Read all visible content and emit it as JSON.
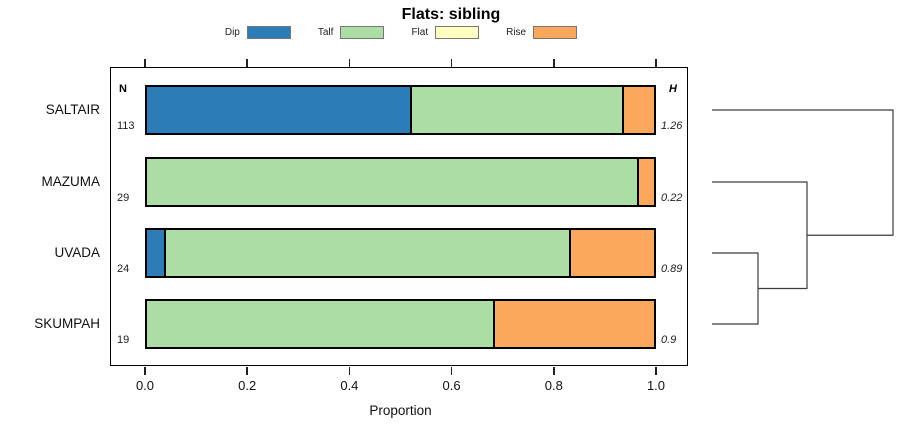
{
  "title": "Flats: sibling",
  "legend": [
    {
      "label": "Dip",
      "color": "#2C7CB8"
    },
    {
      "label": "Talf",
      "color": "#ABDDA4"
    },
    {
      "label": "Flat",
      "color": "#FFFFBF"
    },
    {
      "label": "Rise",
      "color": "#FBA75C"
    }
  ],
  "chart_data": {
    "type": "bar",
    "subtype": "horizontal-stacked-proportion",
    "title": "Flats: sibling",
    "xlabel": "Proportion",
    "xlim": [
      0.0,
      1.0
    ],
    "x_ticks": [
      "0.0",
      "0.2",
      "0.4",
      "0.6",
      "0.8",
      "1.0"
    ],
    "legend_position": "top",
    "series_names": [
      "Dip",
      "Talf",
      "Flat",
      "Rise"
    ],
    "n_header": "N",
    "h_header": "H",
    "categories": [
      "SALTAIR",
      "MAZUMA",
      "UVADA",
      "SKUMPAH"
    ],
    "rows": [
      {
        "label": "SALTAIR",
        "n": "113",
        "h": "1.26",
        "segments": [
          [
            "Dip",
            0.522
          ],
          [
            "Talf",
            0.416
          ],
          [
            "Flat",
            0
          ],
          [
            "Rise",
            0.062
          ]
        ]
      },
      {
        "label": "MAZUMA",
        "n": "29",
        "h": "0.22",
        "segments": [
          [
            "Dip",
            0
          ],
          [
            "Talf",
            0.966
          ],
          [
            "Flat",
            0
          ],
          [
            "Rise",
            0.034
          ]
        ]
      },
      {
        "label": "UVADA",
        "n": "24",
        "h": "0.89",
        "segments": [
          [
            "Dip",
            0.042
          ],
          [
            "Talf",
            0.792
          ],
          [
            "Flat",
            0
          ],
          [
            "Rise",
            0.166
          ]
        ]
      },
      {
        "label": "SKUMPAH",
        "n": "19",
        "h": "0.9",
        "segments": [
          [
            "Dip",
            0
          ],
          [
            "Talf",
            0.684
          ],
          [
            "Flat",
            0
          ],
          [
            "Rise",
            0.316
          ]
        ]
      }
    ]
  },
  "dendrogram": {
    "structure": "(((UVADA,SKUMPAH),MAZUMA),SALTAIR)",
    "merges": [
      [
        "UVADA",
        "SKUMPAH"
      ],
      [
        "#0",
        "MAZUMA"
      ],
      [
        "#1",
        "SALTAIR"
      ]
    ]
  }
}
